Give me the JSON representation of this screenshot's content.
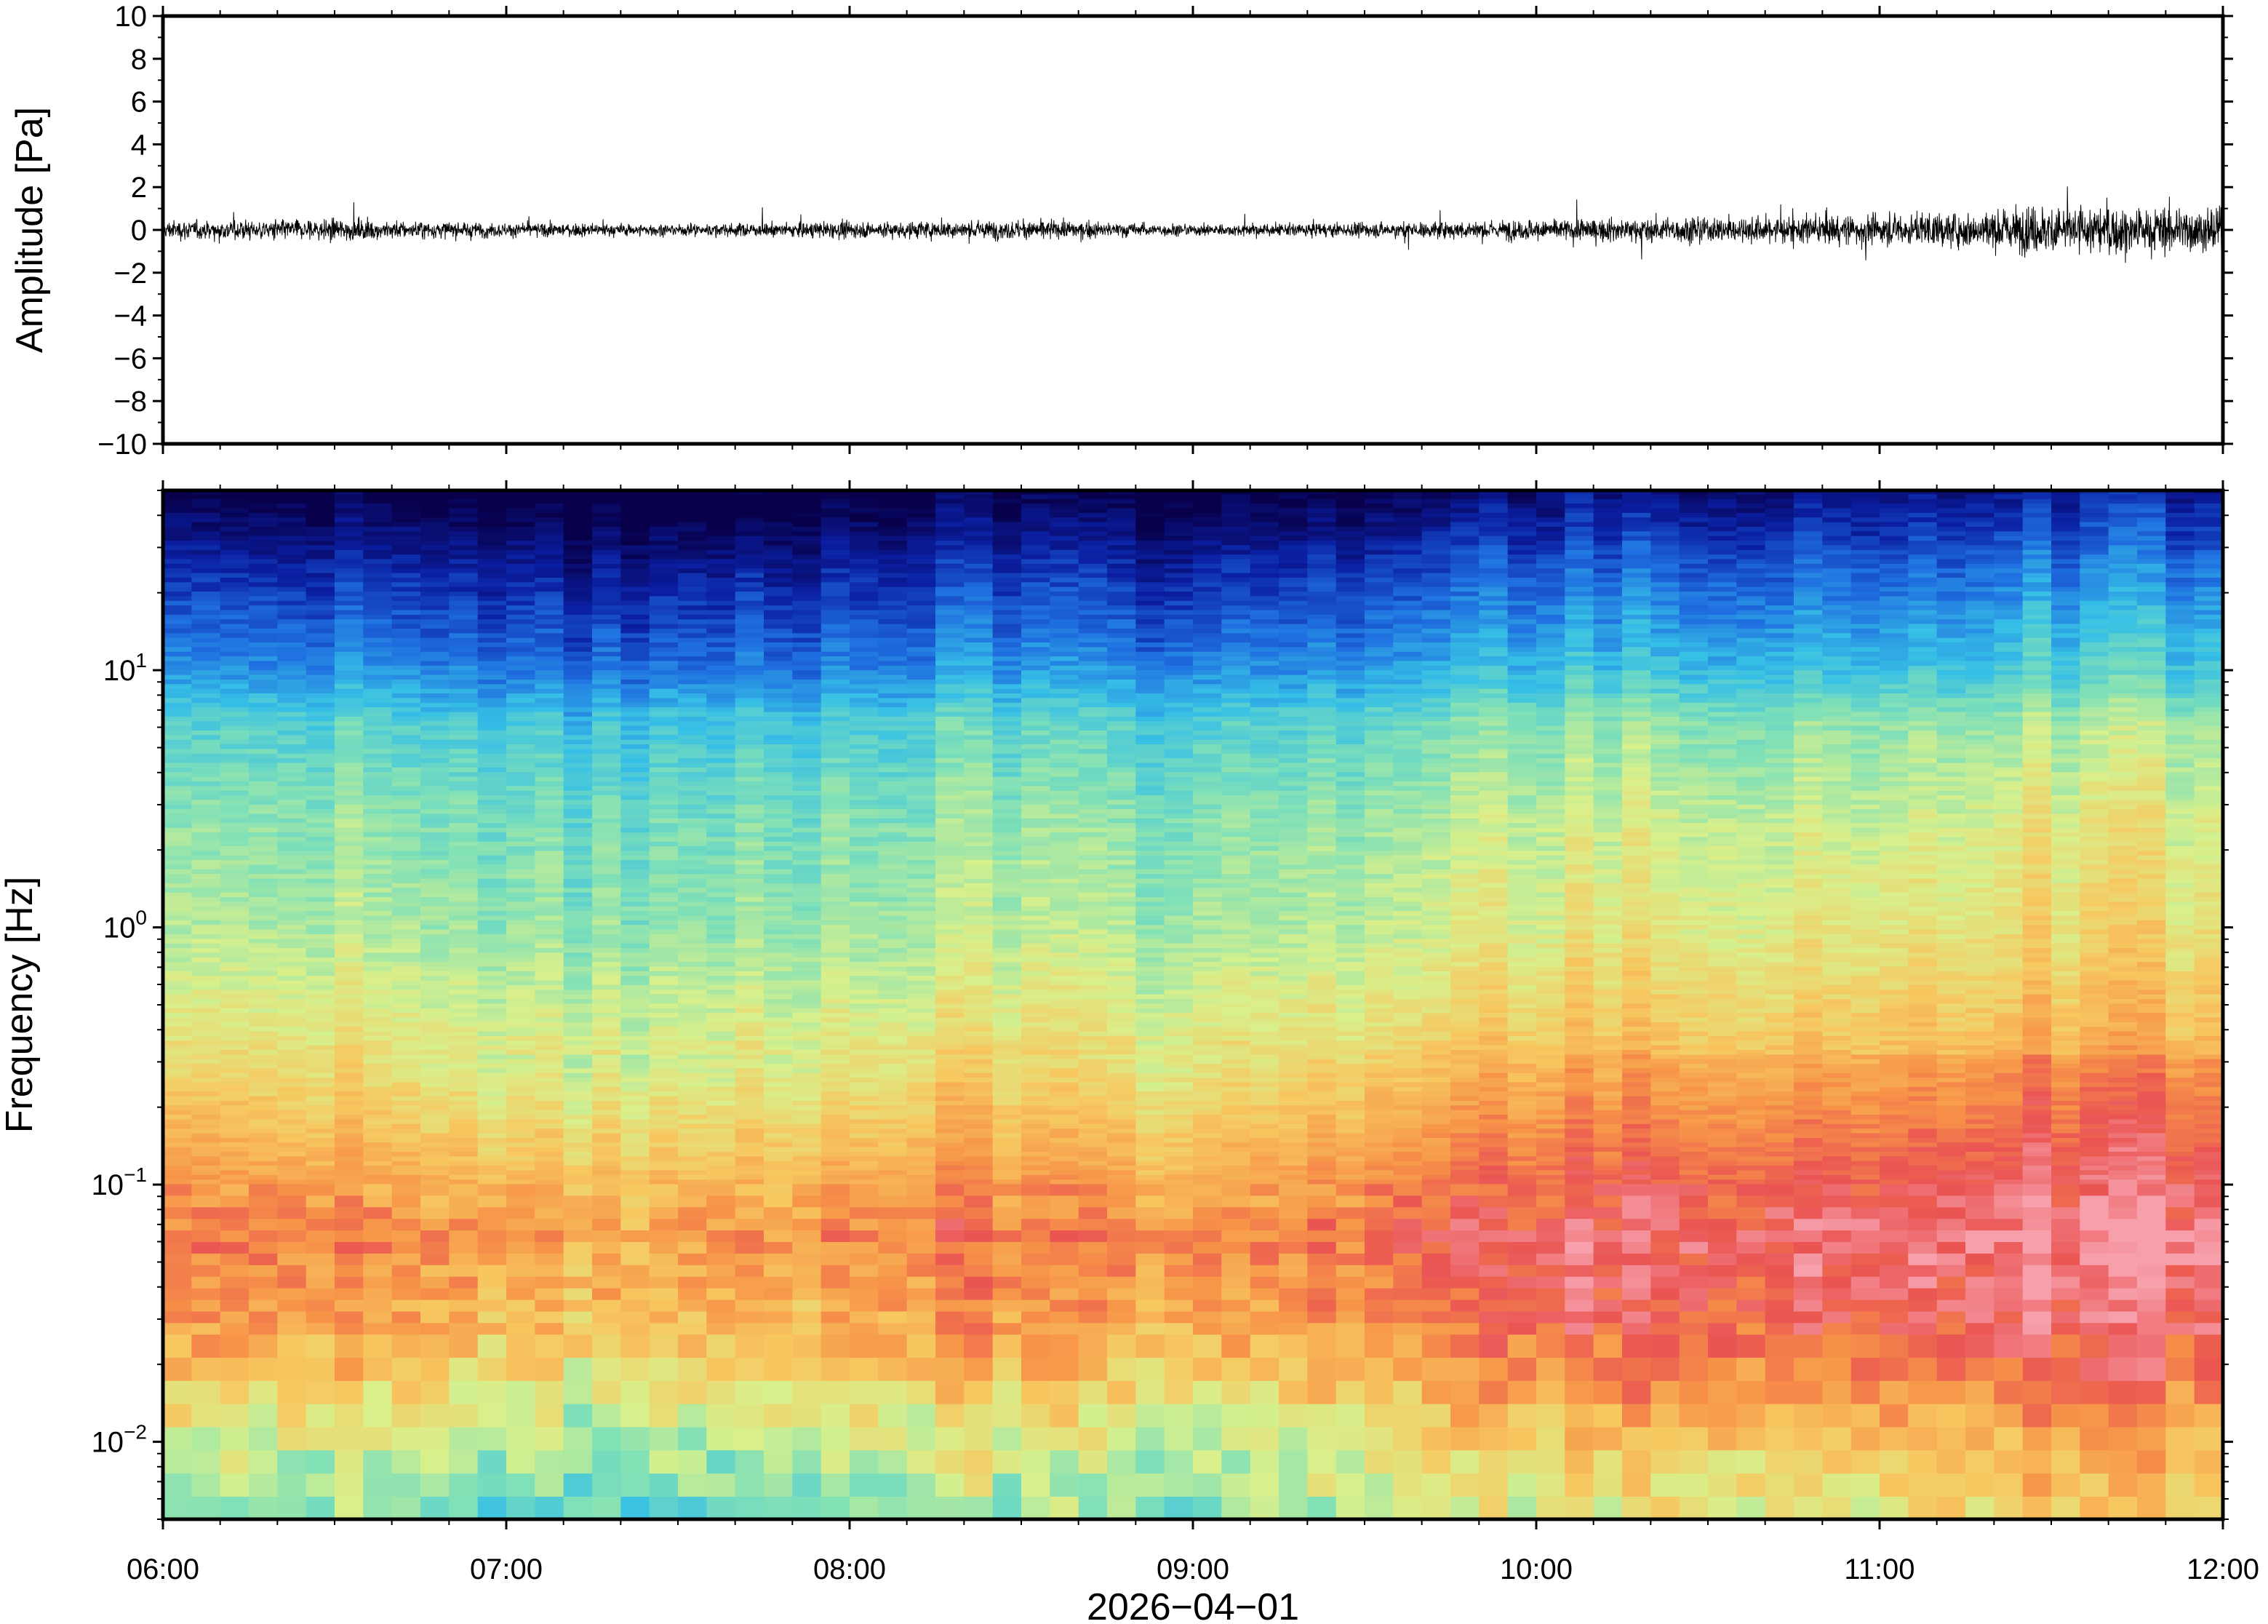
{
  "chart_data": [
    {
      "type": "line",
      "panel": "waveform",
      "ylabel": "Amplitude [Pa]",
      "ylim": [
        -10,
        10
      ],
      "yticks": [
        10,
        8,
        6,
        4,
        2,
        0,
        -2,
        -4,
        -6,
        -8,
        -10
      ],
      "ytick_labels": [
        "10",
        "8",
        "6",
        "4",
        "2",
        "0",
        "−2",
        "−4",
        "−6",
        "−8",
        "−10"
      ],
      "x_range": [
        "06:00",
        "12:00"
      ],
      "series": [
        {
          "hours": [
            6.0,
            6.5,
            7.0,
            7.5,
            8.0,
            8.5,
            9.0,
            9.5,
            10.0,
            10.5,
            11.0,
            11.25,
            11.5,
            11.75,
            12.0
          ],
          "envelope_pa": [
            0.8,
            0.9,
            0.6,
            0.5,
            0.7,
            0.8,
            0.5,
            0.6,
            0.9,
            1.1,
            1.3,
            1.5,
            2.2,
            2.0,
            1.8
          ]
        }
      ],
      "line_color": "#000000",
      "grid": false
    },
    {
      "type": "heatmap",
      "panel": "spectrogram",
      "ylabel": "Frequency [Hz]",
      "yscale": "log",
      "ylim": [
        0.005,
        50
      ],
      "yticks": [
        0.01,
        0.1,
        1,
        10
      ],
      "ytick_labels": [
        {
          "base": "10",
          "exp": "−2"
        },
        {
          "base": "10",
          "exp": "−1"
        },
        {
          "base": "10",
          "exp": "0"
        },
        {
          "base": "10",
          "exp": "1"
        }
      ],
      "x_categories": [
        "06:00",
        "07:00",
        "08:00",
        "09:00",
        "10:00",
        "11:00",
        "12:00"
      ],
      "xlabel": "2026−04−01",
      "colormap": [
        "#08004a",
        "#0a1ea0",
        "#1f6fe0",
        "#36bfe6",
        "#7fe0b8",
        "#d8f08c",
        "#f7c860",
        "#f79548",
        "#ea5452",
        "#f7a0ac"
      ],
      "power_profile_by_log10_freq": {
        "log10_freq": [
          -2.3,
          -2.0,
          -1.6,
          -1.2,
          -0.8,
          -0.4,
          0.0,
          0.4,
          0.8,
          1.0,
          1.4,
          1.7
        ],
        "level_0_to_1": [
          0.52,
          0.6,
          0.78,
          0.86,
          0.74,
          0.62,
          0.54,
          0.5,
          0.42,
          0.3,
          0.16,
          0.02
        ]
      },
      "time_modulation": {
        "hours": [
          6.0,
          6.7,
          7.0,
          7.5,
          8.0,
          8.3,
          8.5,
          9.0,
          9.5,
          10.0,
          10.5,
          11.0,
          11.5,
          12.0
        ],
        "level_shift": [
          0.0,
          -0.04,
          -0.07,
          -0.06,
          -0.04,
          0.0,
          -0.03,
          -0.05,
          0.0,
          0.04,
          0.05,
          0.06,
          0.09,
          0.08
        ]
      },
      "grid": false
    }
  ]
}
